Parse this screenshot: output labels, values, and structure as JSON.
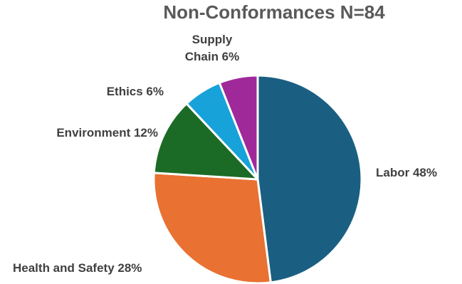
{
  "chart_data": {
    "type": "pie",
    "title": "Non-Conformances N=84",
    "slices": [
      {
        "label_lines": [
          "Labor 48%"
        ],
        "category": "Labor",
        "value": 48,
        "color": "#1a5f82"
      },
      {
        "label_lines": [
          "Health and Safety 28%"
        ],
        "category": "Health and Safety",
        "value": 28,
        "color": "#e97132"
      },
      {
        "label_lines": [
          "Environment 12%"
        ],
        "category": "Environment",
        "value": 12,
        "color": "#1b6b26"
      },
      {
        "label_lines": [
          "Ethics 6%"
        ],
        "category": "Ethics",
        "value": 6,
        "color": "#17a2da"
      },
      {
        "label_lines": [
          "Supply",
          "Chain 6%"
        ],
        "category": "Supply Chain",
        "value": 6,
        "color": "#a0299a"
      }
    ],
    "legend": "none",
    "start_angle": "12 o'clock",
    "direction": "clockwise"
  }
}
